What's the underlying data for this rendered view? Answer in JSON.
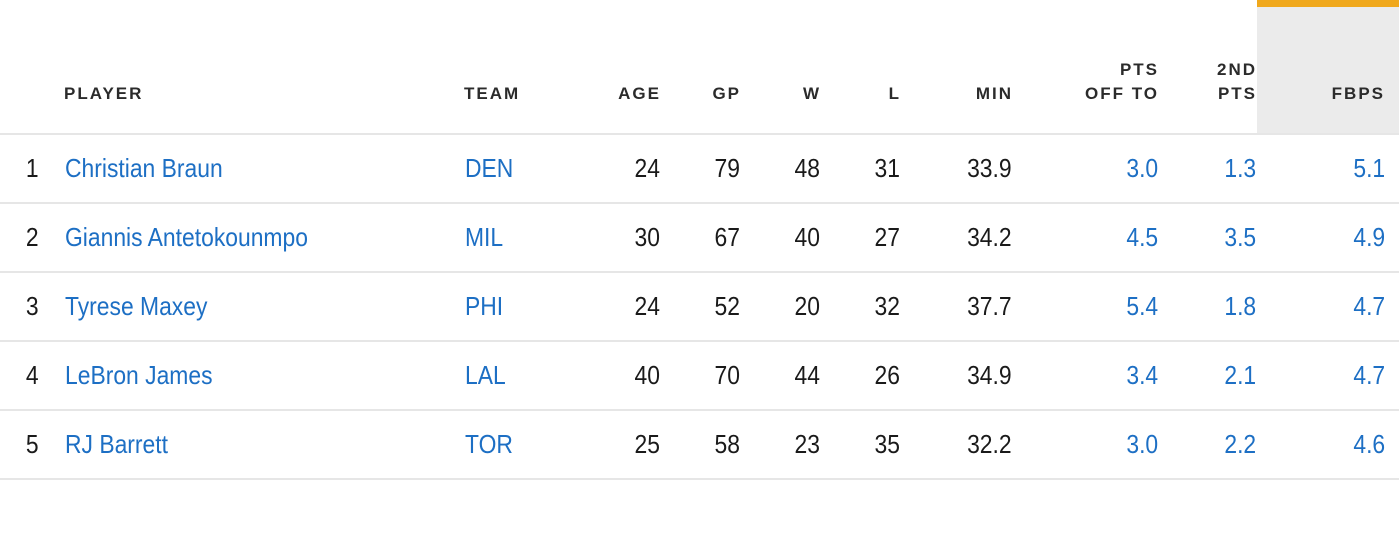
{
  "columns": [
    {
      "key": "rank",
      "label": ""
    },
    {
      "key": "player",
      "label": "PLAYER"
    },
    {
      "key": "team",
      "label": "TEAM"
    },
    {
      "key": "age",
      "label": "AGE"
    },
    {
      "key": "gp",
      "label": "GP"
    },
    {
      "key": "w",
      "label": "W"
    },
    {
      "key": "l",
      "label": "L"
    },
    {
      "key": "min",
      "label": "MIN"
    },
    {
      "key": "pts_off_to",
      "label_line1": "PTS",
      "label_line2": "OFF TO"
    },
    {
      "key": "second_pts",
      "label_line1": "2ND",
      "label_line2": "PTS"
    },
    {
      "key": "fbps",
      "label": "FBPS",
      "sorted": true
    }
  ],
  "rows": [
    {
      "rank": "1",
      "player": "Christian Braun",
      "team": "DEN",
      "age": "24",
      "gp": "79",
      "w": "48",
      "l": "31",
      "min": "33.9",
      "pts_off_to": "3.0",
      "second_pts": "1.3",
      "fbps": "5.1"
    },
    {
      "rank": "2",
      "player": "Giannis Antetokounmpo",
      "team": "MIL",
      "age": "30",
      "gp": "67",
      "w": "40",
      "l": "27",
      "min": "34.2",
      "pts_off_to": "4.5",
      "second_pts": "3.5",
      "fbps": "4.9"
    },
    {
      "rank": "3",
      "player": "Tyrese Maxey",
      "team": "PHI",
      "age": "24",
      "gp": "52",
      "w": "20",
      "l": "32",
      "min": "37.7",
      "pts_off_to": "5.4",
      "second_pts": "1.8",
      "fbps": "4.7"
    },
    {
      "rank": "4",
      "player": "LeBron James",
      "team": "LAL",
      "age": "40",
      "gp": "70",
      "w": "44",
      "l": "26",
      "min": "34.9",
      "pts_off_to": "3.4",
      "second_pts": "2.1",
      "fbps": "4.7"
    },
    {
      "rank": "5",
      "player": "RJ Barrett",
      "team": "TOR",
      "age": "25",
      "gp": "58",
      "w": "23",
      "l": "35",
      "min": "32.2",
      "pts_off_to": "3.0",
      "second_pts": "2.2",
      "fbps": "4.6"
    }
  ],
  "colors": {
    "link": "#1d6fc4",
    "sort_indicator": "#f0a81c",
    "sorted_header_bg": "#ebebeb",
    "row_border": "#e6e6e6"
  }
}
